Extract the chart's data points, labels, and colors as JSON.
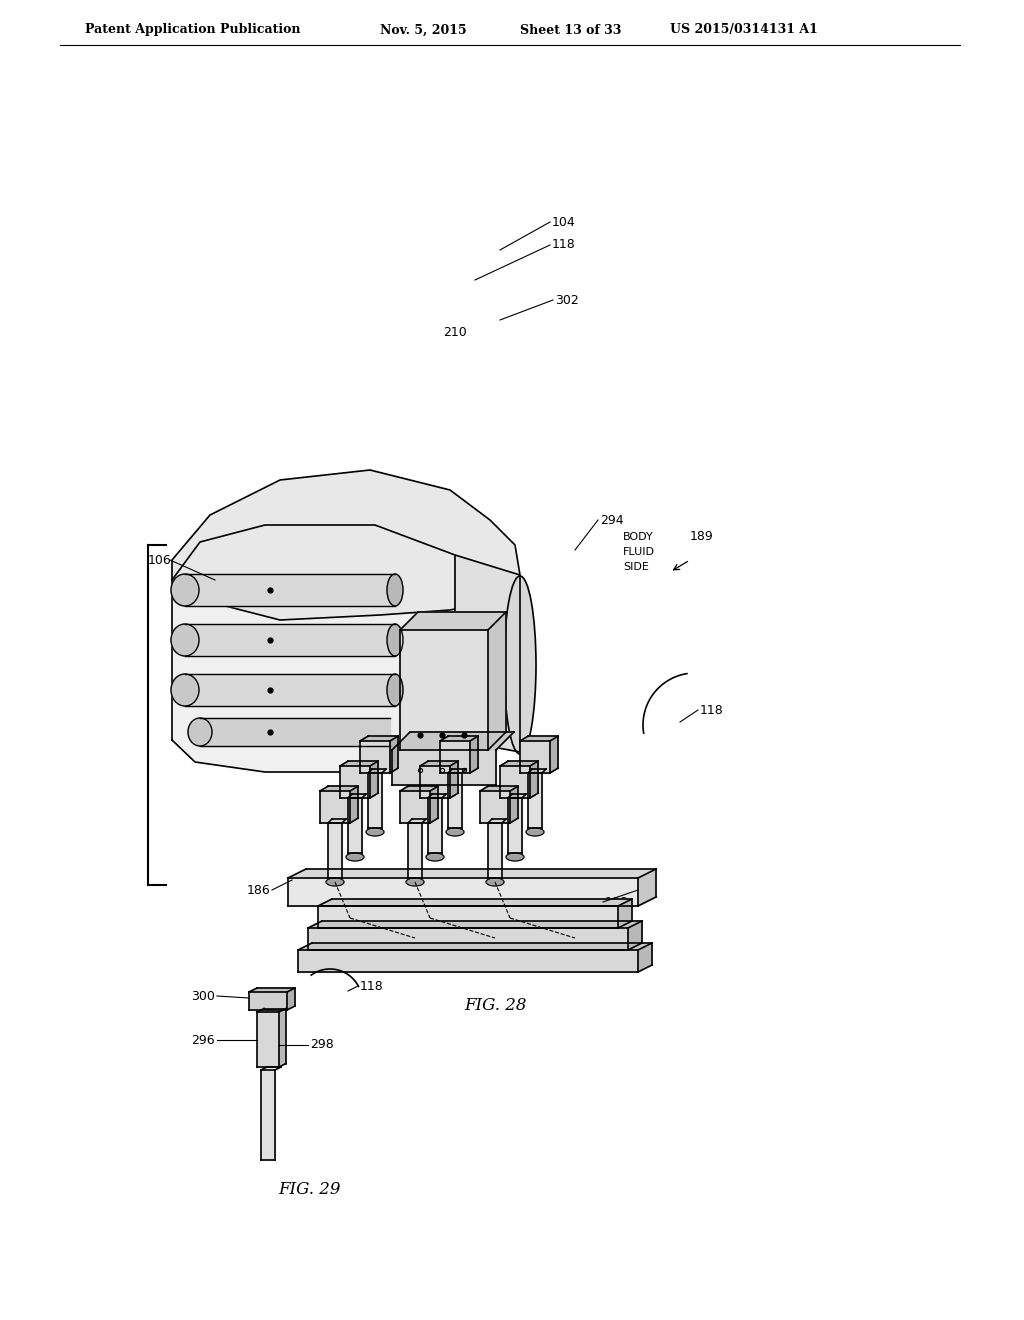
{
  "bg_color": "#ffffff",
  "line_color": "#000000",
  "header_text": "Patent Application Publication",
  "header_date": "Nov. 5, 2015",
  "header_sheet": "Sheet 13 of 33",
  "header_patent": "US 2015/0314131 A1",
  "fig28_label": "FIG. 28",
  "fig29_label": "FIG. 29"
}
